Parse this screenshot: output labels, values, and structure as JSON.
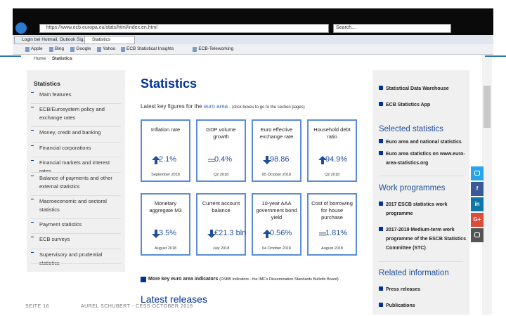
{
  "browser": {
    "url": "https://www.ecb.europa.eu/stats/html/index.en.html",
    "search": "Search...",
    "tabs": [
      "Login bei Hotmail, Outlook Sig...",
      "Statistics"
    ],
    "favorites": [
      "Apple",
      "Bing",
      "Google",
      "Yahoo",
      "ECB Statistical Insights",
      "ECB-Teleworking"
    ]
  },
  "breadcrumb": [
    "Home",
    "Statistics"
  ],
  "sidebar": {
    "title": "Statistics",
    "items": [
      "Main features",
      "ECB/Eurosystem policy and exchange rates",
      "Money, credit and banking",
      "Financial corporations",
      "Financial markets and interest rates",
      "Balance of payments and other external statistics",
      "Macroeconomic and sectoral statistics",
      "Payment statistics",
      "ECB surveys",
      "Supervisory and prudential statistics"
    ]
  },
  "main": {
    "title": "Statistics",
    "intro": "Latest key figures for the",
    "intro_link": "euro area",
    "intro_note": "- (click boxes to go to the section pages)",
    "cards": [
      {
        "label": "Inflation rate",
        "value": "2.1%",
        "trend": "up",
        "date": "September 2018"
      },
      {
        "label": "GDP volume growth",
        "value": "0.4%",
        "trend": "equal",
        "date": "Q2 2018"
      },
      {
        "label": "Euro effective exchange rate",
        "value": "98.86",
        "trend": "down",
        "date": "05 October 2018"
      },
      {
        "label": "Household debt ratio",
        "value": "94.9%",
        "trend": "up",
        "date": "Q2 2018"
      },
      {
        "label": "Monetary aggregate M3",
        "value": "3.5%",
        "trend": "down",
        "date": "August 2018"
      },
      {
        "label": "Current account balance",
        "value": "€21.3 bln",
        "trend": "down",
        "date": "July 2018"
      },
      {
        "label": "10-year AAA government bond yield",
        "value": "0.56%",
        "trend": "up",
        "date": "04 October 2018"
      },
      {
        "label": "Cost of borrowing for house purchase",
        "value": "1.81%",
        "trend": "equal",
        "date": "August 2018"
      }
    ],
    "more_link": "More key euro area indicators",
    "more_note": "(DSBB indicators - the IMF's Dissemination Standards Bulletin Board)",
    "latest": "Latest releases"
  },
  "right": {
    "links": [
      "Statistical Data Warehouse",
      "ECB Statistics App"
    ],
    "selected_title": "Selected statistics",
    "selected": [
      "Euro area and national statistics",
      "Euro area statistics on www.euro-area-statistics.org"
    ],
    "work_title": "Work programmes",
    "work": [
      "2017 ESCB statistics work programme",
      "2017-2019 Medium-term work programme of the ESCB Statistics Committee (STC)"
    ],
    "related_title": "Related information",
    "related": [
      "Press releases",
      "Publications"
    ]
  },
  "social": [
    "f",
    "in",
    "G+"
  ],
  "footer": {
    "page": "SEITE 16",
    "author": "AUREL SCHUBERT - CESS OCTOBER 2018"
  }
}
